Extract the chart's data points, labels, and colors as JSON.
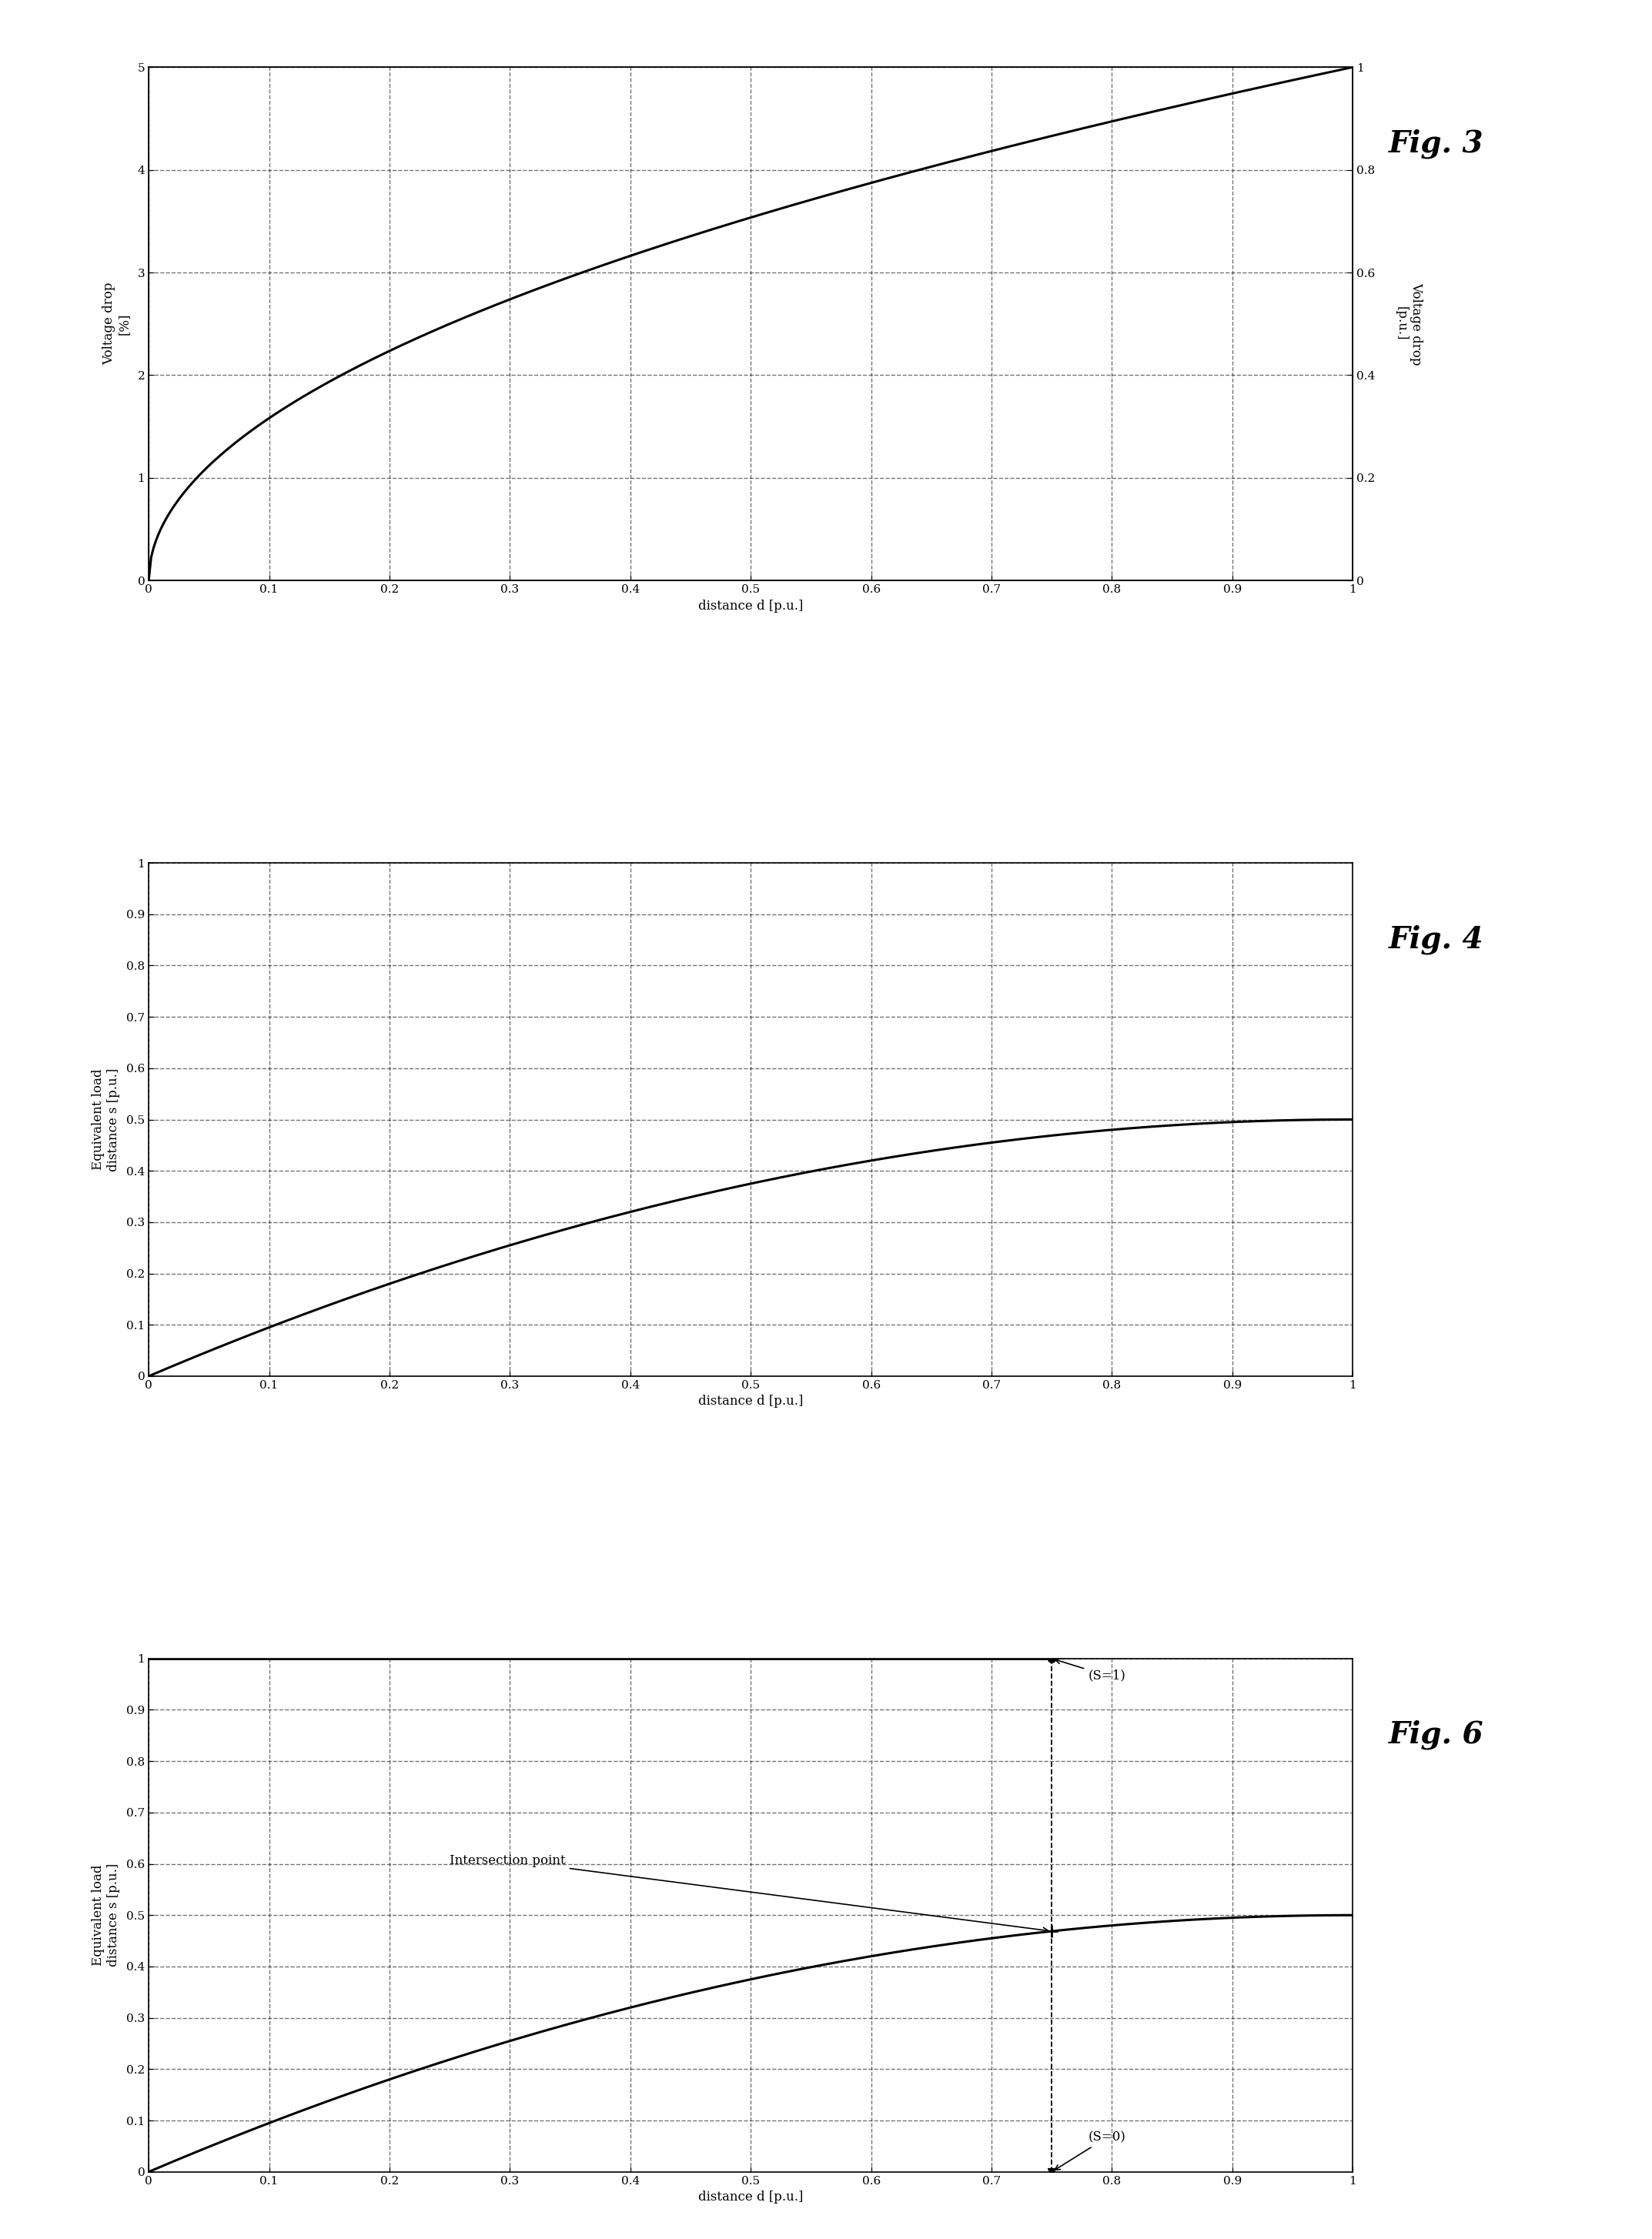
{
  "fig3": {
    "title": "Fig. 3",
    "ylabel_left": "Voltage drop\n[%]",
    "ylabel_right": "Voltage drop\n[p.u.]",
    "xlabel": "distance d [p.u.]",
    "xlim": [
      0,
      1
    ],
    "ylim_left": [
      0,
      5
    ],
    "ylim_right": [
      0,
      1
    ],
    "xticks": [
      0,
      0.1,
      0.2,
      0.3,
      0.4,
      0.5,
      0.6,
      0.7,
      0.8,
      0.9,
      1
    ],
    "yticks_left": [
      0,
      1,
      2,
      3,
      4,
      5
    ],
    "yticks_right": [
      0,
      0.2,
      0.4,
      0.6,
      0.8,
      1
    ],
    "xlabel_italic": "d"
  },
  "fig4": {
    "title": "Fig. 4",
    "ylabel_left": "Equivalent load\ndistance s [p.u.]",
    "xlabel": "distance d [p.u.]",
    "xlim": [
      0,
      1
    ],
    "ylim": [
      0,
      1
    ],
    "xticks": [
      0,
      0.1,
      0.2,
      0.3,
      0.4,
      0.5,
      0.6,
      0.7,
      0.8,
      0.9,
      1
    ],
    "yticks": [
      0,
      0.1,
      0.2,
      0.3,
      0.4,
      0.5,
      0.6,
      0.7,
      0.8,
      0.9,
      1
    ]
  },
  "fig6": {
    "title": "Fig. 6",
    "ylabel_left": "Equivalent load\ndistance s [p.u.]",
    "xlabel": "distance d [p.u.]",
    "xlim": [
      0,
      1
    ],
    "ylim": [
      0,
      1
    ],
    "xticks": [
      0,
      0.1,
      0.2,
      0.3,
      0.4,
      0.5,
      0.6,
      0.7,
      0.8,
      0.9,
      1
    ],
    "yticks": [
      0,
      0.1,
      0.2,
      0.3,
      0.4,
      0.5,
      0.6,
      0.7,
      0.8,
      0.9,
      1
    ],
    "vline_x": 0.75,
    "label_s1": "(S=1)",
    "label_s0": "(S=0)",
    "label_intersection": "Intersection point"
  },
  "line_color": "#000000",
  "line_width": 2.2,
  "grid_color": "#000000",
  "grid_alpha": 0.55,
  "grid_linestyle": "--",
  "background_color": "#ffffff",
  "font_family": "serif",
  "tick_fontsize": 11,
  "label_fontsize": 12,
  "title_fontsize": 28
}
